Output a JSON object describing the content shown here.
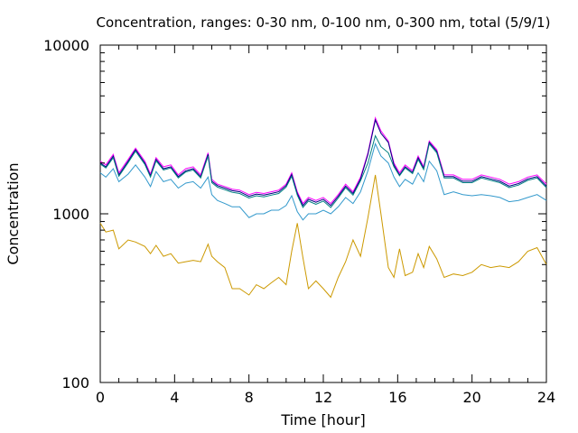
{
  "chart_data": {
    "type": "line",
    "title": "Concentration, ranges: 0-30 nm, 0-100 nm, 0-300 nm, total (5/9/1)",
    "xlabel": "Time [hour]",
    "ylabel": "Concentration",
    "xlim": [
      0,
      24
    ],
    "ylim": [
      100,
      10000
    ],
    "yscale": "log",
    "grid": false,
    "legend": "none",
    "x_ticks": [
      "0",
      "4",
      "8",
      "12",
      "16",
      "20",
      "24"
    ],
    "y_ticks": [
      "100",
      "1000",
      "10000"
    ],
    "x": [
      0,
      0.3,
      0.7,
      1.0,
      1.5,
      1.9,
      2.4,
      2.7,
      3.0,
      3.4,
      3.8,
      4.2,
      4.6,
      5.0,
      5.4,
      5.8,
      6.0,
      6.3,
      6.7,
      7.1,
      7.5,
      8.0,
      8.4,
      8.8,
      9.2,
      9.6,
      10.0,
      10.3,
      10.6,
      10.9,
      11.2,
      11.6,
      12.0,
      12.4,
      12.8,
      13.2,
      13.6,
      14.0,
      14.4,
      14.8,
      15.1,
      15.5,
      15.8,
      16.1,
      16.4,
      16.8,
      17.1,
      17.4,
      17.7,
      18.1,
      18.5,
      19.0,
      19.5,
      20.0,
      20.5,
      21.0,
      21.5,
      22.0,
      22.5,
      23.0,
      23.5,
      24.0
    ],
    "series": [
      {
        "color": "#ff00ff",
        "values": [
          2050,
          1950,
          2250,
          1750,
          2100,
          2450,
          2050,
          1720,
          2150,
          1900,
          1950,
          1700,
          1850,
          1900,
          1700,
          2300,
          1600,
          1500,
          1450,
          1400,
          1380,
          1300,
          1340,
          1320,
          1350,
          1380,
          1500,
          1750,
          1350,
          1150,
          1250,
          1200,
          1250,
          1150,
          1300,
          1500,
          1350,
          1650,
          2300,
          3700,
          3100,
          2700,
          2000,
          1750,
          1950,
          1800,
          2200,
          1900,
          2700,
          2400,
          1700,
          1700,
          1600,
          1600,
          1700,
          1650,
          1600,
          1500,
          1550,
          1650,
          1700,
          1500
        ]
      },
      {
        "color": "#000080",
        "values": [
          2000,
          1900,
          2200,
          1700,
          2050,
          2400,
          2000,
          1680,
          2100,
          1850,
          1900,
          1660,
          1800,
          1850,
          1660,
          2250,
          1560,
          1470,
          1420,
          1370,
          1350,
          1270,
          1310,
          1290,
          1320,
          1350,
          1470,
          1710,
          1320,
          1120,
          1220,
          1170,
          1220,
          1120,
          1270,
          1460,
          1320,
          1610,
          2250,
          3600,
          3000,
          2650,
          1950,
          1700,
          1900,
          1760,
          2150,
          1860,
          2650,
          2350,
          1660,
          1660,
          1560,
          1560,
          1660,
          1610,
          1560,
          1460,
          1510,
          1610,
          1660,
          1460
        ]
      },
      {
        "color": "#008080",
        "values": [
          1970,
          1870,
          2150,
          1670,
          2010,
          2350,
          1960,
          1650,
          2060,
          1820,
          1870,
          1630,
          1770,
          1820,
          1630,
          2200,
          1530,
          1440,
          1390,
          1340,
          1320,
          1240,
          1280,
          1260,
          1290,
          1320,
          1440,
          1670,
          1290,
          1090,
          1190,
          1140,
          1190,
          1090,
          1240,
          1430,
          1290,
          1570,
          2000,
          2900,
          2500,
          2300,
          1900,
          1680,
          1870,
          1730,
          2100,
          1830,
          2600,
          2300,
          1630,
          1630,
          1530,
          1530,
          1630,
          1580,
          1530,
          1430,
          1480,
          1580,
          1630,
          1430
        ]
      },
      {
        "color": "#3399cc",
        "values": [
          1750,
          1650,
          1850,
          1550,
          1720,
          1950,
          1650,
          1450,
          1780,
          1550,
          1600,
          1420,
          1520,
          1550,
          1420,
          1650,
          1300,
          1200,
          1150,
          1100,
          1100,
          950,
          1000,
          1000,
          1050,
          1050,
          1120,
          1280,
          1030,
          920,
          1000,
          1000,
          1050,
          1000,
          1100,
          1250,
          1150,
          1350,
          1800,
          2600,
          2200,
          2000,
          1650,
          1450,
          1600,
          1500,
          1750,
          1550,
          2050,
          1800,
          1300,
          1350,
          1300,
          1280,
          1300,
          1280,
          1250,
          1180,
          1200,
          1250,
          1300,
          1200
        ]
      },
      {
        "color": "#cc9900",
        "values": [
          880,
          780,
          800,
          620,
          700,
          680,
          640,
          580,
          650,
          560,
          580,
          510,
          520,
          530,
          520,
          660,
          560,
          520,
          480,
          360,
          360,
          330,
          380,
          360,
          390,
          420,
          380,
          600,
          880,
          550,
          360,
          400,
          360,
          320,
          420,
          520,
          700,
          560,
          950,
          1700,
          1000,
          480,
          420,
          620,
          430,
          450,
          580,
          480,
          640,
          540,
          420,
          440,
          430,
          450,
          500,
          480,
          490,
          480,
          520,
          600,
          630,
          500
        ]
      }
    ]
  }
}
